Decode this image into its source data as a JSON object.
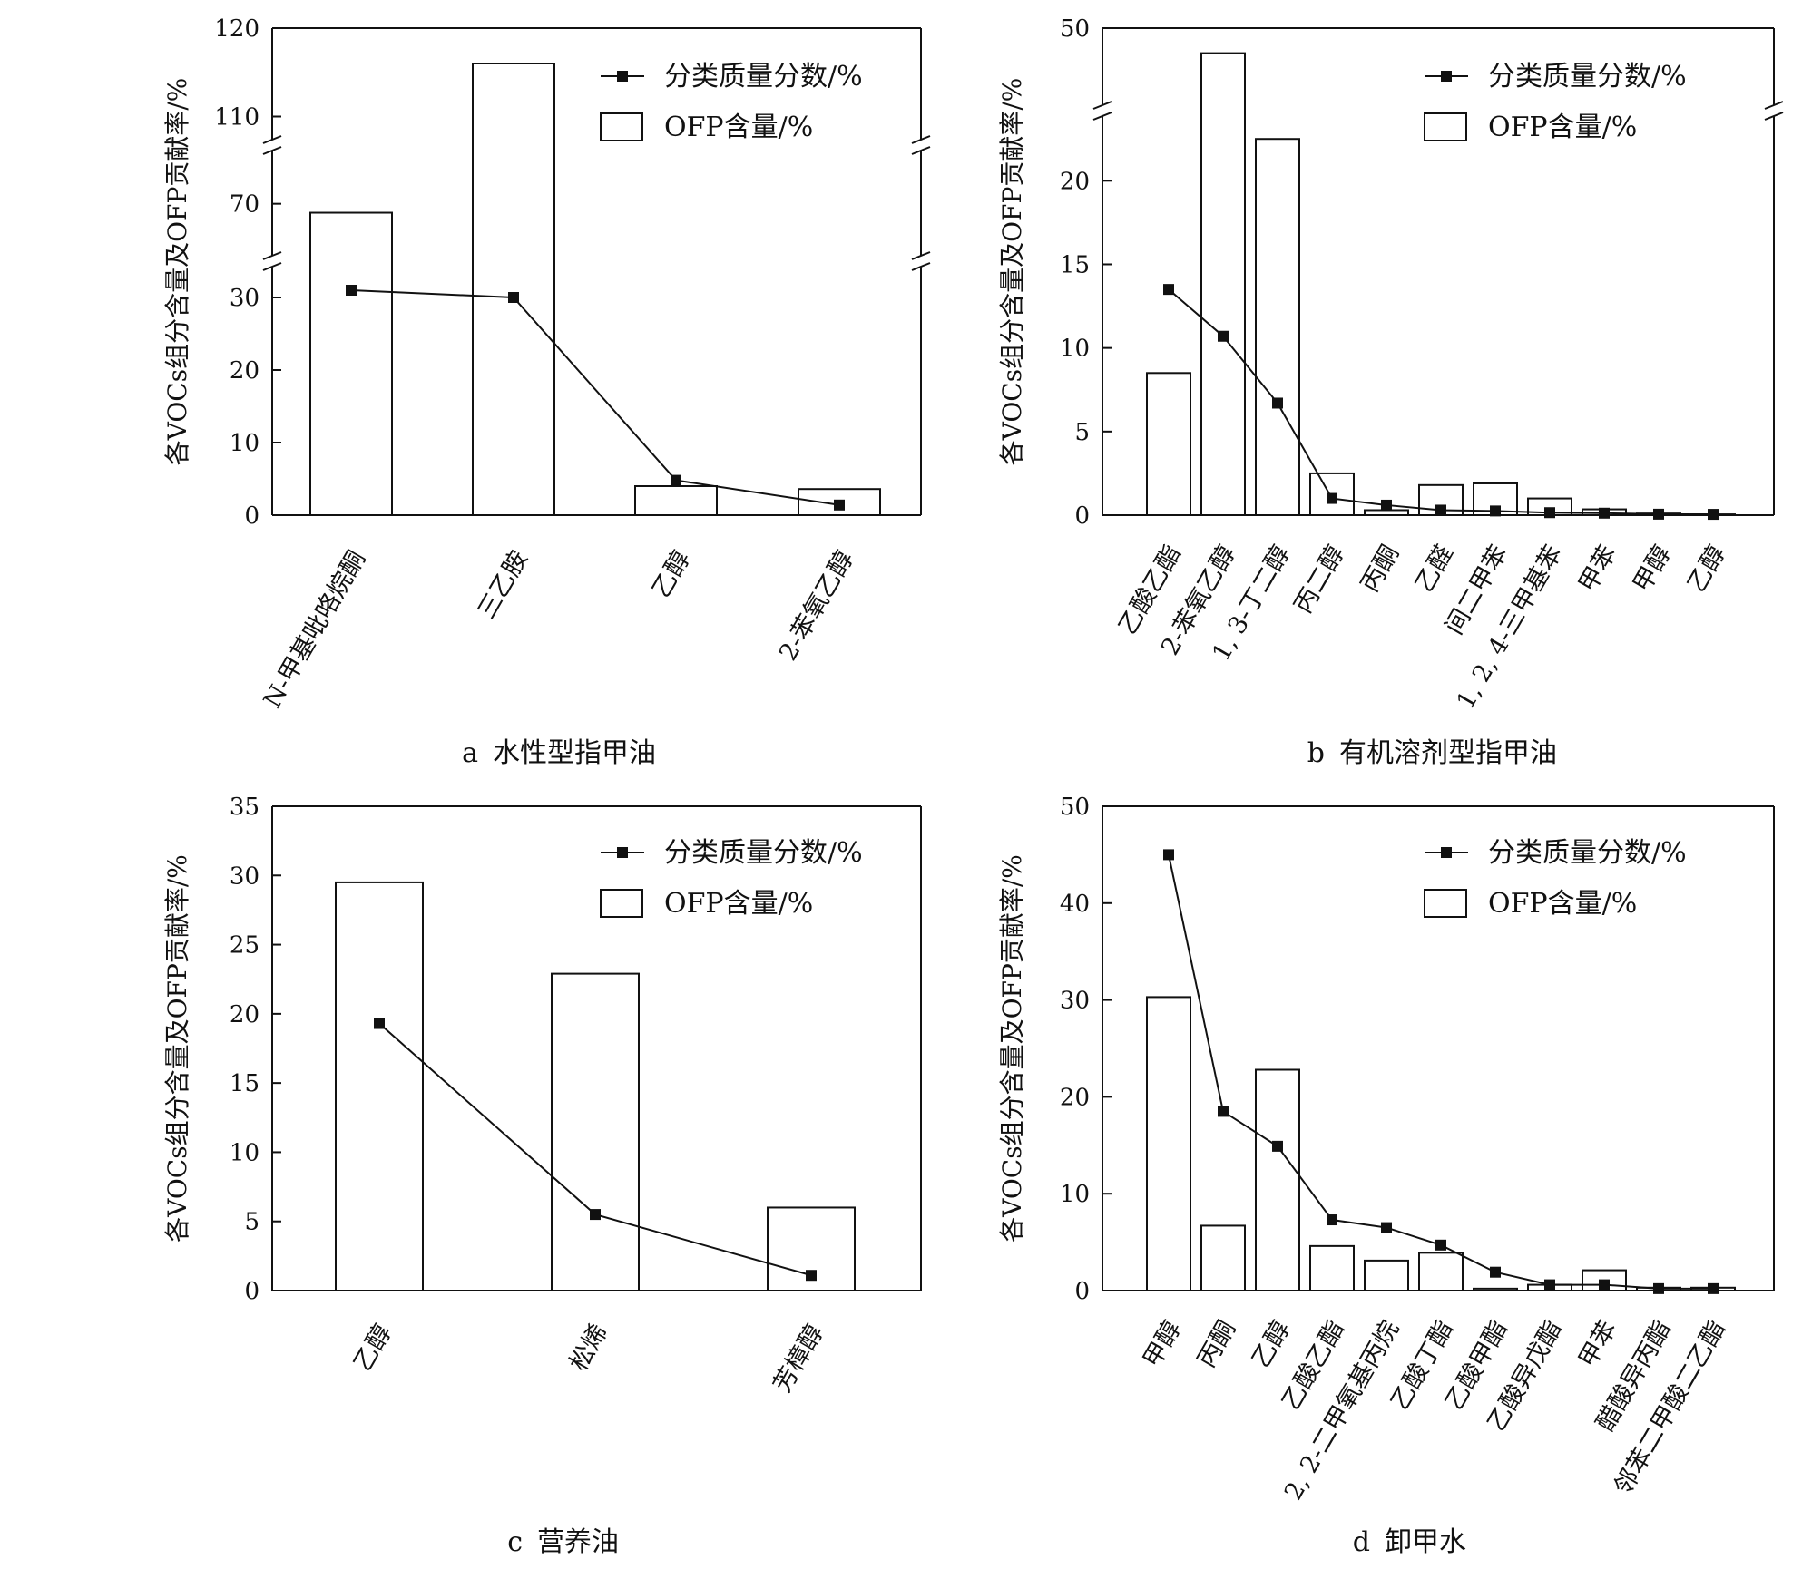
{
  "legend": {
    "line_label": "分类质量分数/%",
    "bar_label": "OFP含量/%"
  },
  "ylabel": "各VOCs组分含量及OFP贡献率/%",
  "colors": {
    "line": "#111111",
    "marker": "#111111",
    "bar_fill": "#ffffff",
    "bar_stroke": "#111111"
  },
  "chart_data": [
    {
      "type": "bar",
      "caption_letter": "a",
      "caption_title": "水性型指甲油",
      "categories": [
        "N-甲基吡咯烷酮",
        "三乙胺",
        "乙醇",
        "2-苯氧乙醇"
      ],
      "series": [
        {
          "name": "OFP含量/%",
          "type": "bar",
          "values": [
            68,
            116,
            4,
            3.6
          ]
        },
        {
          "name": "分类质量分数/%",
          "type": "line",
          "values": [
            31,
            30,
            4.8,
            1.4
          ]
        }
      ],
      "ylabel": "各VOCs组分含量及OFP贡献率/%",
      "ylim": [
        0,
        120
      ],
      "y_break": true,
      "yticks": [
        0,
        10,
        20,
        30,
        70,
        110,
        120
      ],
      "legend": "top-right",
      "grid": false
    },
    {
      "type": "bar",
      "caption_letter": "b",
      "caption_title": "有机溶剂型指甲油",
      "categories": [
        "乙酸乙酯",
        "2-苯氧乙醇",
        "1, 3-丁二醇",
        "丙二醇",
        "丙酮",
        "乙醛",
        "间二甲苯",
        "1, 2, 4-三甲基苯",
        "甲苯",
        "甲醇",
        "乙醇"
      ],
      "series": [
        {
          "name": "OFP含量/%",
          "type": "bar",
          "values": [
            8.5,
            48,
            22.5,
            2.5,
            0.3,
            1.8,
            1.9,
            1.0,
            0.35,
            0.1,
            0.05
          ]
        },
        {
          "name": "分类质量分数/%",
          "type": "line",
          "values": [
            13.5,
            10.7,
            6.7,
            1.0,
            0.6,
            0.3,
            0.25,
            0.15,
            0.12,
            0.06,
            0.05
          ]
        }
      ],
      "ylabel": "各VOCs组分含量及OFP贡献率/%",
      "ylim": [
        0,
        50
      ],
      "y_break": true,
      "yticks": [
        0,
        5,
        10,
        15,
        20,
        50
      ],
      "legend": "top-right",
      "grid": false
    },
    {
      "type": "bar",
      "caption_letter": "c",
      "caption_title": "营养油",
      "categories": [
        "乙醇",
        "松烯",
        "芳樟醇"
      ],
      "series": [
        {
          "name": "OFP含量/%",
          "type": "bar",
          "values": [
            29.5,
            22.9,
            6.0
          ]
        },
        {
          "name": "分类质量分数/%",
          "type": "line",
          "values": [
            19.3,
            5.5,
            1.1
          ]
        }
      ],
      "ylabel": "各VOCs组分含量及OFP贡献率/%",
      "ylim": [
        0,
        35
      ],
      "y_break": false,
      "yticks": [
        0,
        5,
        10,
        15,
        20,
        25,
        30,
        35
      ],
      "legend": "top-right",
      "grid": false
    },
    {
      "type": "bar",
      "caption_letter": "d",
      "caption_title": "卸甲水",
      "categories": [
        "甲醇",
        "丙酮",
        "乙醇",
        "乙酸乙酯",
        "2, 2-二甲氧基丙烷",
        "乙酸丁酯",
        "乙酸甲酯",
        "乙酸异戊酯",
        "甲苯",
        "醋酸异丙酯",
        "邻苯二甲酸二乙酯"
      ],
      "series": [
        {
          "name": "OFP含量/%",
          "type": "bar",
          "values": [
            30.3,
            6.7,
            22.8,
            4.6,
            3.1,
            3.9,
            0.2,
            0.6,
            2.1,
            0.3,
            0.3
          ]
        },
        {
          "name": "分类质量分数/%",
          "type": "line",
          "values": [
            45.0,
            18.5,
            14.9,
            7.3,
            6.5,
            4.7,
            1.9,
            0.6,
            0.6,
            0.2,
            0.2
          ]
        }
      ],
      "ylabel": "各VOCs组分含量及OFP贡献率/%",
      "ylim": [
        0,
        50
      ],
      "y_break": false,
      "yticks": [
        0,
        10,
        20,
        30,
        40,
        50
      ],
      "legend": "top-right",
      "grid": false
    }
  ]
}
